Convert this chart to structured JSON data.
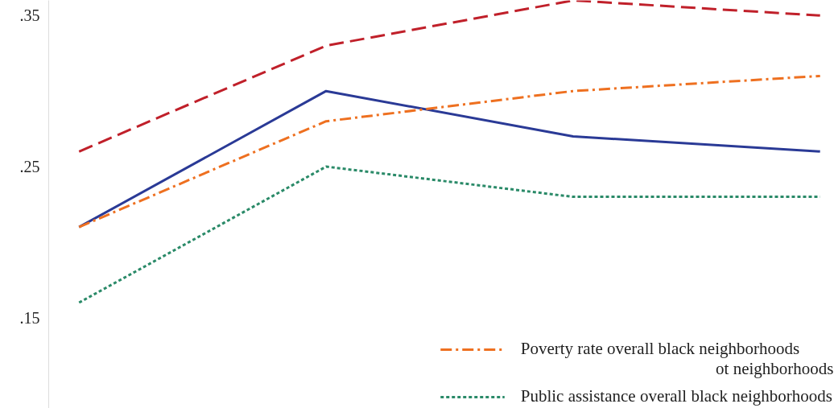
{
  "chart_data": {
    "type": "line",
    "categories": [
      null,
      null,
      null,
      null
    ],
    "series": [
      {
        "color": "#c0202a",
        "line_style": "dashed",
        "values": [
          0.26,
          0.33,
          0.36,
          0.35
        ]
      },
      {
        "color": "#2a3a96",
        "line_style": "solid",
        "values": [
          0.21,
          0.3,
          0.27,
          0.26
        ]
      },
      {
        "name": "Poverty rate overall black neighborhoods",
        "color": "#ee7020",
        "line_style": "dashdot",
        "values": [
          0.21,
          0.28,
          0.3,
          0.31
        ]
      },
      {
        "name": "Public assistance overall black neighborhoods",
        "color": "#2a8a68",
        "line_style": "dotted",
        "values": [
          0.16,
          0.25,
          0.23,
          0.23
        ]
      }
    ],
    "annotations": [
      "ot neighborhoods"
    ],
    "ylim": [
      0.09,
      0.36
    ],
    "yticks": [
      {
        "value": 0.15,
        "label": ".15"
      },
      {
        "value": 0.25,
        "label": ".25"
      },
      {
        "value": 0.35,
        "label": ".35"
      }
    ],
    "grid": false,
    "legend": "bottom right",
    "tick_labels": "y"
  }
}
